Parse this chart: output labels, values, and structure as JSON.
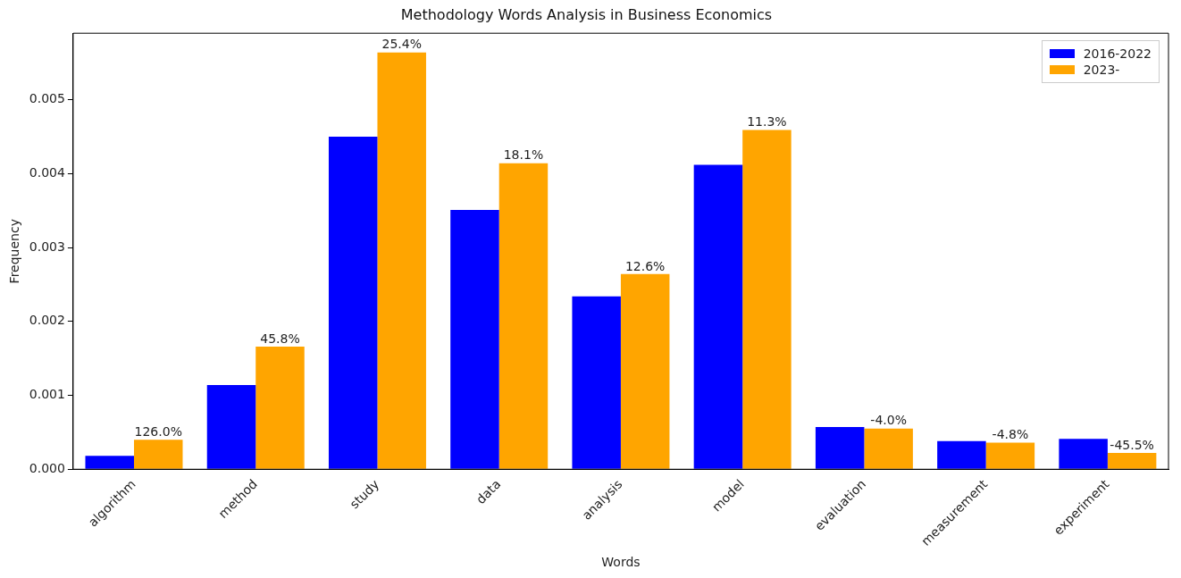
{
  "chart_data": {
    "type": "bar",
    "title": "Methodology Words Analysis in Business Economics",
    "xlabel": "Words",
    "ylabel": "Frequency",
    "categories": [
      "algorithm",
      "method",
      "study",
      "data",
      "analysis",
      "model",
      "evaluation",
      "measurement",
      "experiment"
    ],
    "series": [
      {
        "name": "2016-2022",
        "color": "#0000ff",
        "values": [
          0.00018,
          0.00114,
          0.0045,
          0.00351,
          0.00234,
          0.00412,
          0.00057,
          0.00038,
          0.00041
        ]
      },
      {
        "name": "2023-",
        "color": "#ffa500",
        "values": [
          0.0004,
          0.00166,
          0.00564,
          0.00414,
          0.00264,
          0.00459,
          0.00055,
          0.00036,
          0.00022
        ]
      }
    ],
    "annotations": [
      {
        "text": "126.0%",
        "x": "algorithm",
        "y": 0.0004
      },
      {
        "text": "45.8%",
        "x": "method",
        "y": 0.00166
      },
      {
        "text": "25.4%",
        "x": "study",
        "y": 0.00564
      },
      {
        "text": "18.1%",
        "x": "data",
        "y": 0.00414
      },
      {
        "text": "12.6%",
        "x": "analysis",
        "y": 0.00264
      },
      {
        "text": "11.3%",
        "x": "model",
        "y": 0.00459
      },
      {
        "text": "-4.0%",
        "x": "evaluation",
        "y": 0.00055
      },
      {
        "text": "-4.8%",
        "x": "measurement",
        "y": 0.00036
      },
      {
        "text": "-45.5%",
        "x": "experiment",
        "y": 0.00022
      }
    ],
    "ylim": [
      0,
      0.0059
    ],
    "yticks": [
      {
        "value": 0,
        "label": "0.000"
      },
      {
        "value": 0.001,
        "label": "0.001"
      },
      {
        "value": 0.002,
        "label": "0.002"
      },
      {
        "value": 0.003,
        "label": "0.003"
      },
      {
        "value": 0.004,
        "label": "0.004"
      },
      {
        "value": 0.005,
        "label": "0.005"
      }
    ],
    "grid": false,
    "legend": "top right"
  }
}
